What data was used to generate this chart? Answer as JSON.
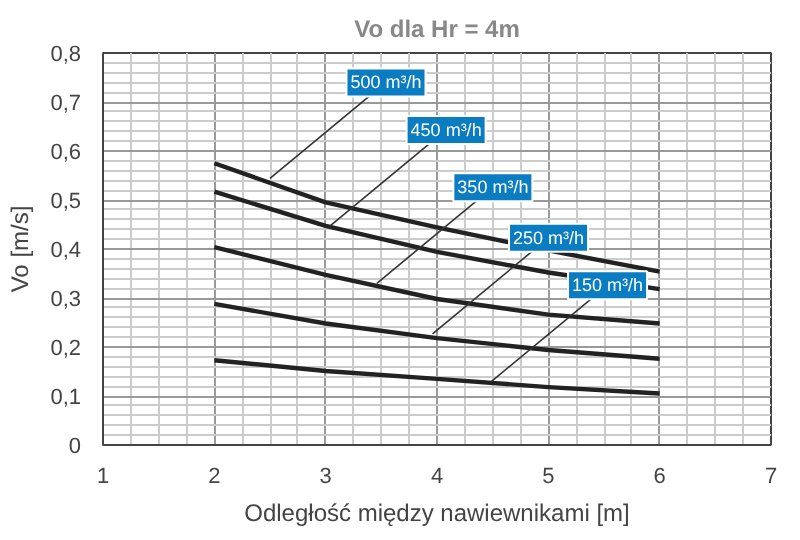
{
  "chart_data": {
    "type": "line",
    "title": "Vo dla Hr = 4m",
    "xlabel": "Odległość między nawiewnikami [m]",
    "ylabel": "Vo [m/s]",
    "x": [
      2,
      3,
      4,
      5,
      6
    ],
    "series": [
      {
        "color": "#222222",
        "values": [
          0.575,
          0.495,
          0.444,
          0.397,
          0.354
        ]
      },
      {
        "color": "#222222",
        "values": [
          0.517,
          0.447,
          0.394,
          0.352,
          0.318
        ]
      },
      {
        "color": "#222222",
        "values": [
          0.404,
          0.347,
          0.298,
          0.266,
          0.248
        ]
      },
      {
        "color": "#222222",
        "values": [
          0.288,
          0.248,
          0.218,
          0.194,
          0.176
        ]
      },
      {
        "color": "#222222",
        "values": [
          0.173,
          0.151,
          0.135,
          0.118,
          0.105
        ]
      }
    ],
    "annotations": [
      {
        "text": "500 m³/h",
        "x": 2.5,
        "y": 0.544
      },
      {
        "text": "450 m³/h",
        "x": 3.04,
        "y": 0.447
      },
      {
        "text": "350 m³/h",
        "x": 3.46,
        "y": 0.33
      },
      {
        "text": "250 m³/h",
        "x": 3.96,
        "y": 0.227
      },
      {
        "text": "150 m³/h",
        "x": 4.49,
        "y": 0.13
      }
    ],
    "xlim": [
      1,
      7
    ],
    "ylim": [
      0,
      0.8
    ],
    "xticks": [
      1,
      2,
      3,
      4,
      5,
      6,
      7
    ],
    "yticks": [
      0,
      {
        "value": 0.1,
        "label": "0,1"
      },
      {
        "value": 0.2,
        "label": "0,2"
      },
      {
        "value": 0.3,
        "label": "0,3"
      },
      {
        "value": 0.4,
        "label": "0,4"
      },
      {
        "value": 0.5,
        "label": "0,5"
      },
      {
        "value": 0.6,
        "label": "0,6"
      },
      {
        "value": 0.7,
        "label": "0,7"
      },
      {
        "value": 0.8,
        "label": "0,8"
      }
    ],
    "grid": true,
    "marker": "none",
    "line_style": "solid"
  }
}
